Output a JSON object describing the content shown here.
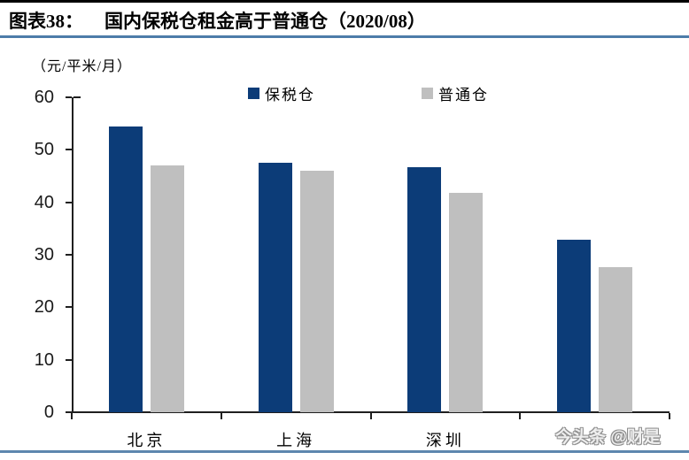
{
  "header": {
    "prefix": "图表38：",
    "title": "国内保税仓租金高于普通仓（2020/08）"
  },
  "watermark": "今头条 @财是",
  "colors": {
    "bonded_bar": "#0c3c78",
    "ordinary_bar": "#bfbfbf",
    "rule_blue": "#4d7ca9",
    "rule_black": "#000000",
    "axis": "#1f1f1f"
  },
  "chart_data": {
    "type": "bar",
    "title": "国内保税仓租金高于普通仓（2020/08）",
    "unit_label": "（元/平米/月）",
    "xlabel": "",
    "ylabel": "元/平米/月",
    "categories": [
      "北京",
      "上海",
      "深圳",
      ""
    ],
    "series": [
      {
        "name": "保税仓",
        "color": "#0c3c78",
        "values": [
          54.5,
          47.5,
          46.7,
          32.9
        ]
      },
      {
        "name": "普通仓",
        "color": "#bfbfbf",
        "values": [
          47.0,
          46.0,
          41.8,
          27.7
        ]
      }
    ],
    "ylim": [
      0,
      60
    ],
    "yticks": [
      0,
      10,
      20,
      30,
      40,
      50,
      60
    ],
    "legend_position": "top",
    "grid": false
  }
}
